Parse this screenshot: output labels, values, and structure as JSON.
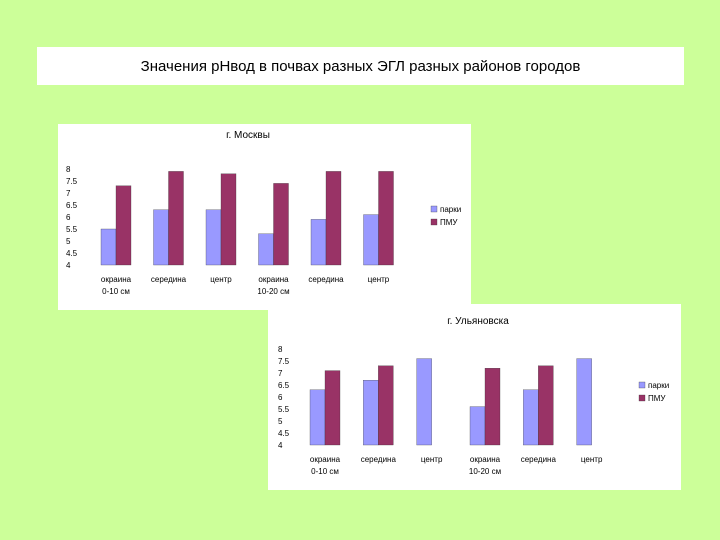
{
  "slide": {
    "title": "Значения рНвод в почвах разных ЭГЛ разных районов городов"
  },
  "colors": {
    "background": "#ccff99",
    "parks": "#9999ff",
    "pmu": "#993366"
  },
  "chart_data": [
    {
      "type": "bar",
      "title": "г. Москвы",
      "categories": [
        [
          "окраина",
          "0-10 см"
        ],
        [
          "середина"
        ],
        [
          "центр"
        ],
        [
          "окраина",
          "10-20 см"
        ],
        [
          "середина"
        ],
        [
          "центр"
        ]
      ],
      "series": [
        {
          "name": "парки",
          "values": [
            5.5,
            6.3,
            6.3,
            5.3,
            5.9,
            6.1
          ]
        },
        {
          "name": "ПМУ",
          "values": [
            7.3,
            7.9,
            7.8,
            7.4,
            7.9,
            7.9
          ]
        }
      ],
      "yticks": [
        "8",
        "7.5",
        "7",
        "6.5",
        "6",
        "5.5",
        "5",
        "4.5",
        "4"
      ],
      "ylim": [
        4,
        8
      ],
      "legend": "right",
      "grid": false
    },
    {
      "type": "bar",
      "title": "г. Ульяновска",
      "categories": [
        [
          "окраина",
          "0-10 см"
        ],
        [
          "середина"
        ],
        [
          "центр"
        ],
        [
          "окраина",
          "10-20 см"
        ],
        [
          "середина"
        ],
        [
          "центр"
        ]
      ],
      "series": [
        {
          "name": "парки",
          "values": [
            6.3,
            6.7,
            7.6,
            5.6,
            6.3,
            7.6
          ]
        },
        {
          "name": "ПМУ",
          "values": [
            7.1,
            7.3,
            null,
            7.2,
            7.3,
            null
          ]
        }
      ],
      "yticks": [
        "8",
        "7.5",
        "7",
        "6.5",
        "6",
        "5.5",
        "5",
        "4.5",
        "4"
      ],
      "ylim": [
        4,
        8
      ],
      "legend": "right",
      "grid": false
    }
  ]
}
